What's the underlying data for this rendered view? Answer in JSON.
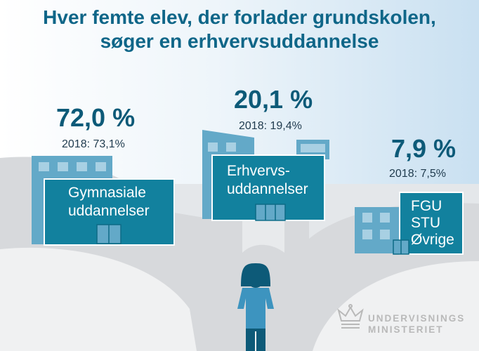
{
  "title": {
    "line1": "Hver femte elev, der forlader grundskolen,",
    "line2": "søger en erhvervsuddannelse"
  },
  "gymnasiale": {
    "percent": "72,0 %",
    "year_label": "2018: 73,1%",
    "label_line1": "Gymnasiale",
    "label_line2": "uddannelser"
  },
  "erhverv": {
    "percent": "20,1 %",
    "year_label": "2018: 19,4%",
    "label_line1": "Erhvervs-",
    "label_line2": "uddannelser"
  },
  "oevrige": {
    "percent": "7,9 %",
    "year_label": "2018: 7,5%",
    "label_line1": "FGU",
    "label_line2": "STU",
    "label_line3": "Øvrige"
  },
  "logo": {
    "line1": "UNDERVISNINGS",
    "line2": "MINISTERIET"
  },
  "icons": [
    "student-figure-icon",
    "crown-logo-icon"
  ],
  "colors": {
    "primary_blue": "#0f6688",
    "building_teal": "#12819e",
    "building_light": "#63a9c8",
    "road_gray": "#d7d9dc"
  }
}
